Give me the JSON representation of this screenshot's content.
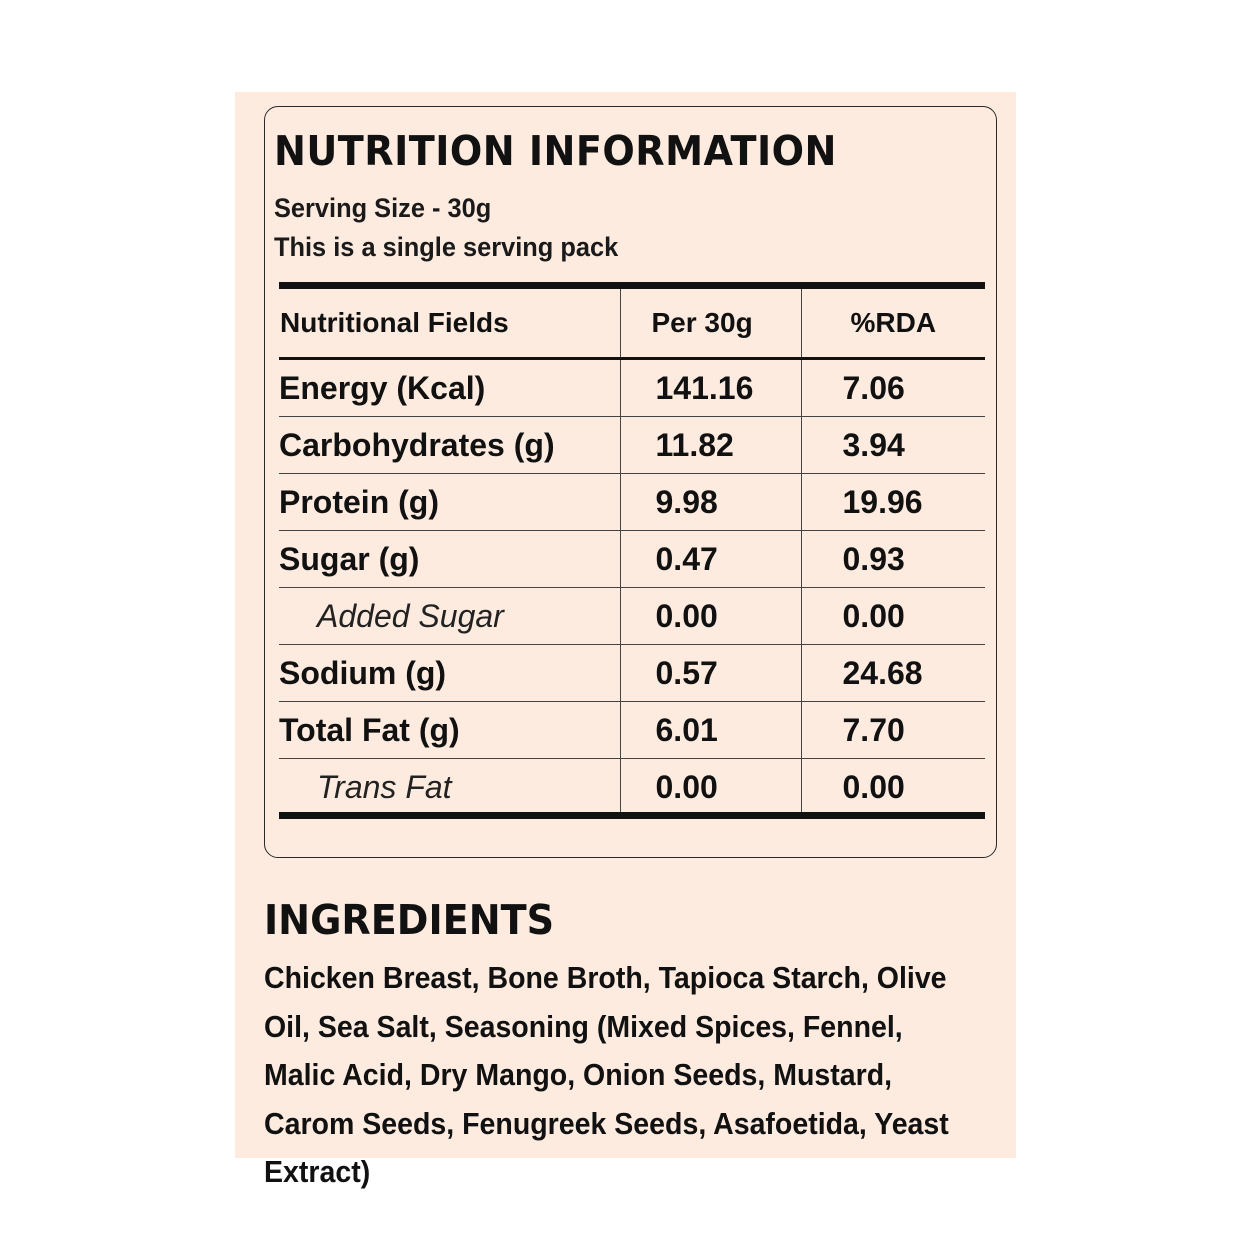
{
  "nutrition": {
    "title": "NUTRITION INFORMATION",
    "serving_size": "Serving Size - 30g",
    "pack_note": "This is a single serving pack",
    "headers": [
      "Nutritional Fields",
      "Per 30g",
      "%RDA"
    ],
    "rows": [
      {
        "field": "Energy (Kcal)",
        "per30g": "141.16",
        "rda": "7.06",
        "sub": false
      },
      {
        "field": "Carbohydrates (g)",
        "per30g": "11.82",
        "rda": "3.94",
        "sub": false
      },
      {
        "field": "Protein (g)",
        "per30g": "9.98",
        "rda": "19.96",
        "sub": false
      },
      {
        "field": "Sugar (g)",
        "per30g": "0.47",
        "rda": "0.93",
        "sub": false
      },
      {
        "field": "Added Sugar",
        "per30g": "0.00",
        "rda": "0.00",
        "sub": true
      },
      {
        "field": "Sodium (g)",
        "per30g": "0.57",
        "rda": "24.68",
        "sub": false
      },
      {
        "field": "Total Fat (g)",
        "per30g": "6.01",
        "rda": "7.70",
        "sub": false
      },
      {
        "field": "Trans Fat",
        "per30g": "0.00",
        "rda": "0.00",
        "sub": true
      }
    ]
  },
  "ingredients": {
    "title": "INGREDIENTS",
    "text": "Chicken Breast, Bone Broth, Tapioca Starch, Olive Oil, Sea Salt, Seasoning (Mixed Spices, Fennel, Malic Acid, Dry Mango, Onion Seeds, Mustard, Carom Seeds, Fenugreek Seeds, Asafoetida, Yeast Extract)"
  },
  "colors": {
    "panel_background": "#fdebdf",
    "text": "#111111"
  }
}
